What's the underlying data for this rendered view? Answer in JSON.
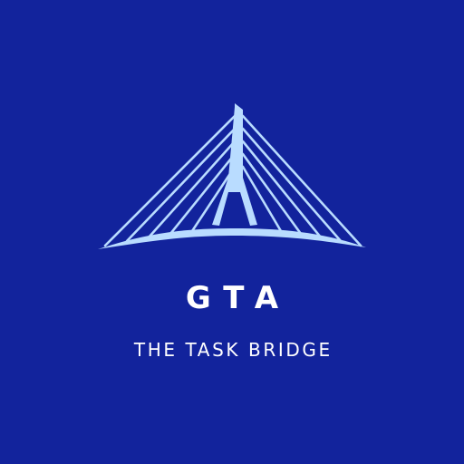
{
  "colors": {
    "background": "#12239c",
    "bridge": "#b9dcff",
    "text": "#ffffff"
  },
  "logo": {
    "icon": "cable-stayed-bridge-icon",
    "brand_name": "GTA",
    "tagline": "THE TASK BRIDGE"
  }
}
